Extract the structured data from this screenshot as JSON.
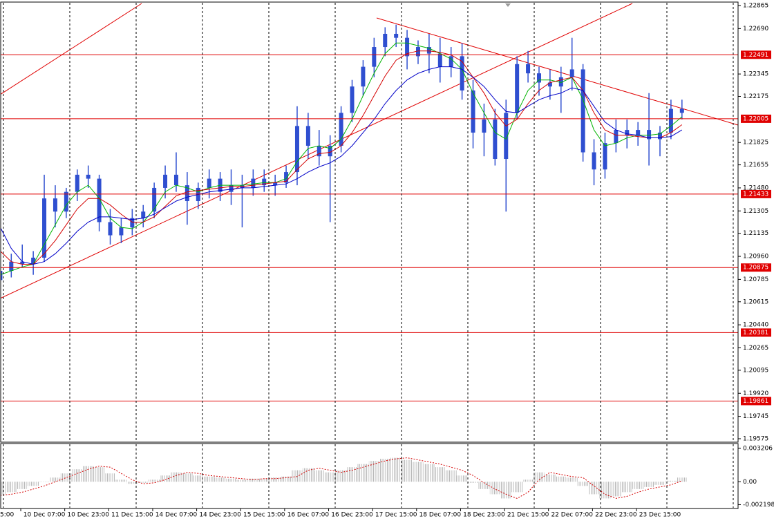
{
  "chart_data": [
    {
      "type": "candlestick",
      "categories": [
        "5:00",
        null,
        null,
        null,
        "10 Dec 07:00",
        null,
        null,
        null,
        "10 Dec 23:00",
        null,
        null,
        null,
        "11 Dec 15:00",
        null,
        null,
        null,
        "14 Dec 07:00",
        null,
        null,
        null,
        "14 Dec 23:00",
        null,
        null,
        null,
        "15 Dec 15:00",
        null,
        null,
        null,
        "16 Dec 07:00",
        null,
        null,
        null,
        "16 Dec 23:00",
        null,
        null,
        null,
        "17 Dec 15:00",
        null,
        null,
        null,
        "18 Dec 07:00",
        null,
        null,
        null,
        "18 Dec 23:00",
        null,
        null,
        null,
        "21 Dec 15:00",
        null,
        null,
        null,
        "22 Dec 07:00",
        null,
        null,
        null,
        "22 Dec 23:00",
        null,
        null,
        null,
        "23 Dec 15:00",
        null,
        null
      ],
      "open": [
        1.2078,
        1.2085,
        1.2092,
        1.209,
        1.2095,
        1.214,
        1.213,
        1.2145,
        1.2158,
        1.2155,
        1.2122,
        1.2112,
        1.2118,
        1.2125,
        1.213,
        1.2148,
        1.2158,
        1.215,
        1.2138,
        1.2148,
        1.2155,
        1.2145,
        1.215,
        1.2148,
        1.2155,
        1.215,
        1.2152,
        1.216,
        1.2195,
        1.218,
        1.2172,
        1.218,
        1.2205,
        1.2225,
        1.224,
        1.2255,
        1.2265,
        1.2262,
        1.2248,
        1.2255,
        1.225,
        1.224,
        1.2248,
        1.2222,
        1.219,
        1.22,
        1.217,
        1.2205,
        1.2242,
        1.2235,
        1.2228,
        1.2225,
        1.2232,
        1.2238,
        1.2175,
        1.2162,
        1.2182,
        1.2192,
        1.2188,
        1.2192,
        1.2185,
        1.219,
        1.2208
      ],
      "high": [
        1.2088,
        1.2098,
        1.2105,
        1.21,
        1.2158,
        1.215,
        1.2148,
        1.2162,
        1.2165,
        1.2158,
        1.2132,
        1.2125,
        1.2132,
        1.2135,
        1.2152,
        1.2165,
        1.2175,
        1.216,
        1.2152,
        1.2162,
        1.216,
        1.2162,
        1.2158,
        1.2162,
        1.2162,
        1.2158,
        1.2165,
        1.221,
        1.2205,
        1.2192,
        1.2188,
        1.221,
        1.223,
        1.2245,
        1.2262,
        1.227,
        1.2272,
        1.2268,
        1.226,
        1.2265,
        1.2262,
        1.2255,
        1.2258,
        1.223,
        1.2212,
        1.2208,
        1.2215,
        1.2248,
        1.2252,
        1.224,
        1.2238,
        1.224,
        1.2262,
        1.2242,
        1.2185,
        1.219,
        1.22,
        1.22,
        1.2198,
        1.222,
        1.2195,
        1.2215,
        1.2215
      ],
      "low": [
        1.2072,
        1.208,
        1.2088,
        1.2082,
        1.2092,
        1.2118,
        1.2125,
        1.2138,
        1.2148,
        1.2115,
        1.2105,
        1.2106,
        1.2112,
        1.2118,
        1.2125,
        1.214,
        1.2145,
        1.212,
        1.2132,
        1.214,
        1.2138,
        1.2135,
        1.2118,
        1.2142,
        1.2145,
        1.2142,
        1.2148,
        1.215,
        1.217,
        1.2165,
        1.2122,
        1.2175,
        1.2198,
        1.2218,
        1.2232,
        1.2248,
        1.2255,
        1.2238,
        1.2242,
        1.2235,
        1.2228,
        1.2232,
        1.2215,
        1.2178,
        1.2172,
        1.2165,
        1.213,
        1.22,
        1.2228,
        1.2218,
        1.2215,
        1.2205,
        1.2222,
        1.2168,
        1.215,
        1.2155,
        1.2175,
        1.2178,
        1.218,
        1.2165,
        1.2172,
        1.2185,
        1.22
      ],
      "close": [
        1.2085,
        1.2092,
        1.209,
        1.2095,
        1.214,
        1.213,
        1.2145,
        1.2158,
        1.2155,
        1.2122,
        1.2112,
        1.2118,
        1.2125,
        1.213,
        1.2148,
        1.2158,
        1.215,
        1.2138,
        1.2148,
        1.2155,
        1.2145,
        1.215,
        1.2148,
        1.2155,
        1.215,
        1.2152,
        1.216,
        1.2195,
        1.218,
        1.2172,
        1.218,
        1.2205,
        1.2225,
        1.224,
        1.2255,
        1.2265,
        1.2262,
        1.2248,
        1.2255,
        1.225,
        1.224,
        1.2248,
        1.2222,
        1.219,
        1.22,
        1.217,
        1.2205,
        1.2242,
        1.2235,
        1.2228,
        1.2225,
        1.2232,
        1.2238,
        1.2175,
        1.2162,
        1.2182,
        1.2192,
        1.2188,
        1.2192,
        1.2185,
        1.219,
        1.2208,
        1.2205
      ],
      "color": "#2f4fd0",
      "lines": [
        {
          "color": "#00b400",
          "values": [
            1.2082,
            1.2085,
            1.2088,
            1.209,
            1.2105,
            1.212,
            1.2135,
            1.2145,
            1.215,
            1.214,
            1.2125,
            1.2118,
            1.2117,
            1.2122,
            1.2132,
            1.2145,
            1.215,
            1.2148,
            1.2145,
            1.2148,
            1.215,
            1.215,
            1.215,
            1.2151,
            1.2152,
            1.2152,
            1.2155,
            1.2168,
            1.2178,
            1.218,
            1.2178,
            1.2185,
            1.22,
            1.2218,
            1.2235,
            1.225,
            1.2258,
            1.2258,
            1.2256,
            1.2254,
            1.225,
            1.2246,
            1.2238,
            1.222,
            1.2205,
            1.219,
            1.2185,
            1.2205,
            1.2222,
            1.223,
            1.223,
            1.2228,
            1.2232,
            1.2215,
            1.2192,
            1.218,
            1.2182,
            1.2186,
            1.2188,
            1.2188,
            1.2189,
            1.2195,
            1.2202
          ]
        },
        {
          "color": "#d40000",
          "values": [
            1.21,
            1.2092,
            1.209,
            1.209,
            1.2098,
            1.2108,
            1.212,
            1.2132,
            1.214,
            1.214,
            1.2135,
            1.2128,
            1.2122,
            1.2122,
            1.2126,
            1.2134,
            1.2142,
            1.2145,
            1.2146,
            1.2147,
            1.2148,
            1.2149,
            1.2149,
            1.215,
            1.2151,
            1.2152,
            1.2153,
            1.2162,
            1.217,
            1.2174,
            1.2175,
            1.218,
            1.219,
            1.2203,
            1.2218,
            1.2233,
            1.2245,
            1.225,
            1.2252,
            1.2252,
            1.2251,
            1.2249,
            1.2244,
            1.2232,
            1.222,
            1.2205,
            1.2195,
            1.22,
            1.2212,
            1.2222,
            1.2228,
            1.223,
            1.2232,
            1.2222,
            1.2205,
            1.2192,
            1.2188,
            1.2188,
            1.2187,
            1.2186,
            1.2186,
            1.219,
            1.2196
          ]
        },
        {
          "color": "#0000c8",
          "values": [
            1.2118,
            1.2102,
            1.2092,
            1.209,
            1.2092,
            1.2098,
            1.2106,
            1.2115,
            1.2122,
            1.2126,
            1.2126,
            1.2125,
            1.2124,
            1.2125,
            1.2128,
            1.2133,
            1.2138,
            1.2141,
            1.2143,
            1.2145,
            1.2146,
            1.2147,
            1.2148,
            1.2148,
            1.2149,
            1.215,
            1.2151,
            1.2155,
            1.216,
            1.2164,
            1.2167,
            1.2172,
            1.218,
            1.219,
            1.22,
            1.2212,
            1.2222,
            1.223,
            1.2235,
            1.2238,
            1.224,
            1.224,
            1.2238,
            1.2232,
            1.2225,
            1.2215,
            1.2206,
            1.2205,
            1.221,
            1.2215,
            1.2218,
            1.222,
            1.2224,
            1.2222,
            1.221,
            1.2198,
            1.2192,
            1.2189,
            1.2188,
            1.2186,
            1.2186,
            1.2187,
            1.2192
          ]
        }
      ],
      "hlines": [
        1.22491,
        1.22005,
        1.21433,
        1.20875,
        1.20381,
        1.19861
      ],
      "hline_color": "#e00000",
      "ylim": [
        1.19575,
        1.22865
      ],
      "yticks": [
        1.22865,
        {
          "value": 1.2269,
          "label": "1.22690"
        },
        1.22345,
        1.22175,
        1.21825,
        1.21655,
        {
          "value": 1.2148,
          "label": "1.21480"
        },
        1.21305,
        1.21135,
        {
          "value": 1.2096,
          "label": "1.20960"
        },
        1.20785,
        1.20615,
        {
          "value": 1.2044,
          "label": "1.20440"
        },
        1.20265,
        1.20095,
        {
          "value": 1.1992,
          "label": "1.19920"
        },
        1.19745,
        1.19575
      ],
      "grid": true
    },
    {
      "type": "bar",
      "values": [
        -0.0012,
        -0.001,
        -0.0007,
        -0.0004,
        0,
        0.0004,
        0.0008,
        0.0012,
        0.0015,
        0.0014,
        0.0008,
        0.0002,
        -0.0002,
        -0.0001,
        0.0002,
        0.0006,
        0.0009,
        0.0008,
        0.0006,
        0.0005,
        0.0004,
        0.0003,
        0.0002,
        0.0003,
        0.0003,
        0.0004,
        0.0005,
        0.0011,
        0.0013,
        0.0011,
        0.0009,
        0.0011,
        0.0014,
        0.0017,
        0.002,
        0.0022,
        0.0023,
        0.0021,
        0.0019,
        0.0017,
        0.0014,
        0.0011,
        0.0006,
        -0.0001,
        -0.0007,
        -0.0012,
        -0.0016,
        -0.001,
        0.0002,
        0.0009,
        0.0007,
        0.0005,
        0.0004,
        -0.0004,
        -0.0012,
        -0.0016,
        -0.0014,
        -0.001,
        -0.0007,
        -0.0005,
        -0.0003,
        0.0001,
        0.0004
      ],
      "color": "#b8b8b8",
      "signal": {
        "color": "#d40000",
        "values": [
          -0.0013,
          -0.0012,
          -0.001,
          -0.0007,
          -0.0004,
          0,
          0.0004,
          0.0008,
          0.0012,
          0.0015,
          0.0014,
          0.0008,
          0.0002,
          -0.0002,
          -0.0001,
          0.0002,
          0.0006,
          0.0009,
          0.0008,
          0.0006,
          0.0005,
          0.0004,
          0.0003,
          0.0002,
          0.0003,
          0.0003,
          0.0004,
          0.0005,
          0.0011,
          0.0013,
          0.0011,
          0.0009,
          0.0011,
          0.0014,
          0.0017,
          0.002,
          0.0022,
          0.0023,
          0.0021,
          0.0019,
          0.0017,
          0.0014,
          0.0011,
          0.0006,
          -0.0001,
          -0.0007,
          -0.0012,
          -0.0016,
          -0.001,
          0.0002,
          0.0009,
          0.0007,
          0.0005,
          0.0004,
          -0.0004,
          -0.0012,
          -0.0016,
          -0.0014,
          -0.001,
          -0.0007,
          -0.0005,
          -0.0003,
          0.0001
        ]
      },
      "ylim": [
        -0.0025,
        0.0036
      ],
      "yticks": [
        0.003206,
        {
          "value": 0,
          "label": "0.00"
        },
        -0.002198
      ]
    }
  ]
}
